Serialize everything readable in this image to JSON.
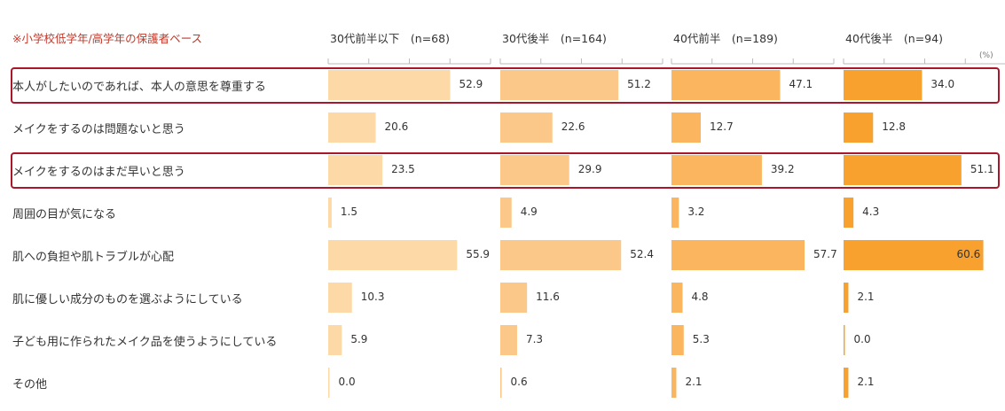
{
  "note": "※小学校低学年/高学年の保護者ベース",
  "unit_label": "(%)",
  "chart_data": {
    "type": "bar",
    "orientation": "horizontal",
    "xlim": [
      0,
      100
    ],
    "categories": [
      "本人がしたいのであれば、本人の意思を尊重する",
      "メイクをするのは問題ないと思う",
      "メイクをするのはまだ早いと思う",
      "周囲の目が気になる",
      "肌への負担や肌トラブルが心配",
      "肌に優しい成分のものを選ぶようにしている",
      "子ども用に作られたメイク品を使うようにしている",
      "その他"
    ],
    "series": [
      {
        "name": "30代前半以下　(n=68)",
        "color": "#fdd9a8",
        "values": [
          52.9,
          20.6,
          23.5,
          1.5,
          55.9,
          10.3,
          5.9,
          0.0
        ],
        "labels": [
          "52.9",
          "20.6",
          "23.5",
          "1.5",
          "55.9",
          "10.3",
          "5.9",
          "0.0"
        ]
      },
      {
        "name": "30代後半　(n=164)",
        "color": "#fcc88a",
        "values": [
          51.2,
          22.6,
          29.9,
          4.9,
          52.4,
          11.6,
          7.3,
          0.6
        ],
        "labels": [
          "51.2",
          "22.6",
          "29.9",
          "4.9",
          "52.4",
          "11.6",
          "7.3",
          "0.6"
        ]
      },
      {
        "name": "40代前半　(n=189)",
        "color": "#fbb55f",
        "values": [
          47.1,
          12.7,
          39.2,
          3.2,
          57.7,
          4.8,
          5.3,
          2.1
        ],
        "labels": [
          "47.1",
          "12.7",
          "39.2",
          "3.2",
          "57.7",
          "4.8",
          "5.3",
          "2.1"
        ]
      },
      {
        "name": "40代後半　(n=94)",
        "color": "#f8a12f",
        "values": [
          34.0,
          12.8,
          51.1,
          4.3,
          60.6,
          2.1,
          0.0,
          2.1
        ],
        "labels": [
          "34.0",
          "12.8",
          "51.1",
          "4.3",
          "60.6",
          "2.1",
          "0.0",
          "2.1"
        ]
      }
    ],
    "highlighted_categories": [
      0,
      2
    ],
    "highlight_color": "#a8172a",
    "axis_color": "#bbbbbb",
    "grid": false
  }
}
